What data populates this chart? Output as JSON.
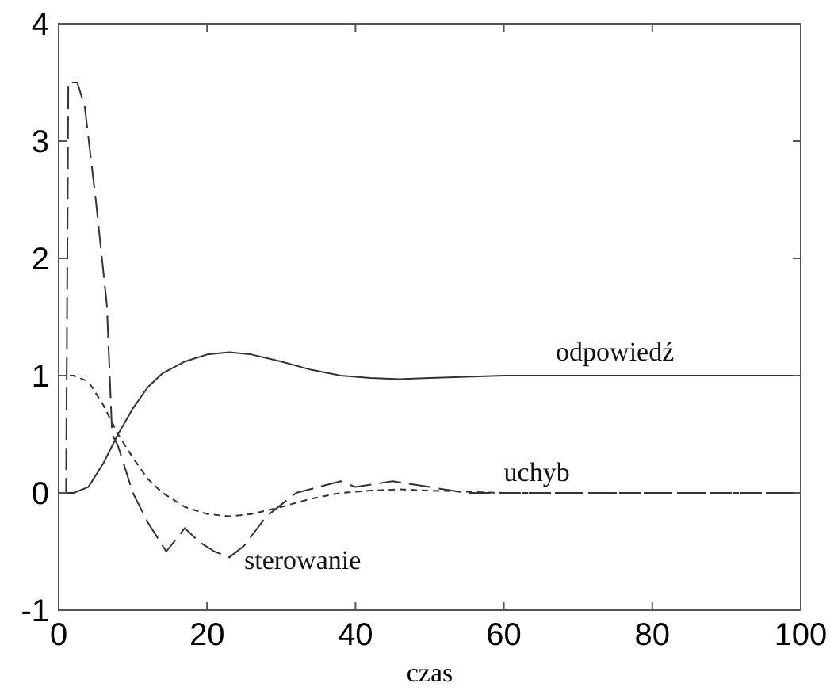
{
  "chart_data": {
    "type": "line",
    "xlabel": "czas",
    "xlim": [
      0,
      100
    ],
    "ylim": [
      -1,
      4
    ],
    "xticks": [
      0,
      20,
      40,
      60,
      80,
      100
    ],
    "yticks": [
      -1,
      0,
      1,
      2,
      3,
      4
    ],
    "grid": false,
    "legend": false,
    "series": [
      {
        "name": "odpowiedź",
        "color": "#333333",
        "line_style": "solid",
        "x": [
          0,
          2,
          4,
          6,
          8,
          10,
          12,
          14,
          17,
          20,
          23,
          26,
          30,
          34,
          38,
          42,
          46,
          50,
          55,
          60,
          70,
          80,
          90,
          100
        ],
        "values": [
          0,
          0,
          0.05,
          0.25,
          0.5,
          0.72,
          0.9,
          1.02,
          1.12,
          1.18,
          1.2,
          1.18,
          1.12,
          1.05,
          1.0,
          0.98,
          0.97,
          0.98,
          0.99,
          1.0,
          1.0,
          1.0,
          1.0,
          1.0
        ]
      },
      {
        "name": "uchyb",
        "color": "#333333",
        "line_style": "dotted",
        "x": [
          0,
          2,
          4,
          6,
          8,
          10,
          12,
          14,
          17,
          20,
          23,
          26,
          30,
          34,
          38,
          42,
          46,
          50,
          55,
          60,
          70,
          80,
          90,
          100
        ],
        "values": [
          1,
          1,
          0.95,
          0.75,
          0.5,
          0.3,
          0.12,
          0,
          -0.12,
          -0.18,
          -0.2,
          -0.18,
          -0.12,
          -0.05,
          0,
          0.02,
          0.03,
          0.02,
          0.01,
          0,
          0,
          0,
          0,
          0
        ]
      },
      {
        "name": "sterowanie",
        "color": "#333333",
        "line_style": "dashed",
        "x": [
          0,
          1,
          1.3,
          2.5,
          3.5,
          5,
          6.5,
          7.2,
          8,
          10,
          12,
          14.5,
          17,
          19,
          21,
          23,
          25,
          28,
          32,
          35,
          38,
          40,
          45,
          50,
          55,
          60,
          70,
          80,
          90,
          100
        ],
        "values": [
          0,
          0,
          3.5,
          3.5,
          3.3,
          2.5,
          1.6,
          0.5,
          0.4,
          0,
          -0.25,
          -0.5,
          -0.3,
          -0.42,
          -0.5,
          -0.55,
          -0.45,
          -0.2,
          0,
          0.05,
          0.1,
          0.05,
          0.1,
          0.05,
          0,
          0,
          0,
          0,
          0,
          0
        ]
      }
    ]
  }
}
